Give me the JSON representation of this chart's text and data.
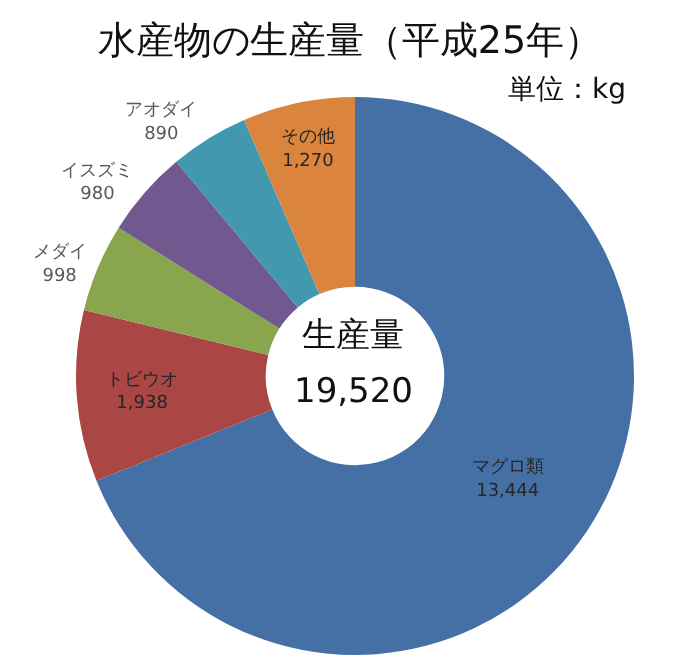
{
  "chart_data": {
    "type": "donut",
    "title": "水産物の生産量（平成25年）",
    "subtitle": "単位：kg",
    "categories": [
      "マグロ類",
      "トビウオ",
      "メダイ",
      "イスズミ",
      "アオダイ",
      "その他"
    ],
    "values": [
      13444,
      1938,
      998,
      980,
      890,
      1270
    ],
    "value_labels": [
      "13,444",
      "1,938",
      "998",
      "980",
      "890",
      "1,270"
    ],
    "colors": [
      "#4470a6",
      "#aa4644",
      "#89a54e",
      "#71588f",
      "#4198af",
      "#db843d"
    ],
    "annotations": [
      "生産量",
      "19,520"
    ],
    "legend": false
  }
}
